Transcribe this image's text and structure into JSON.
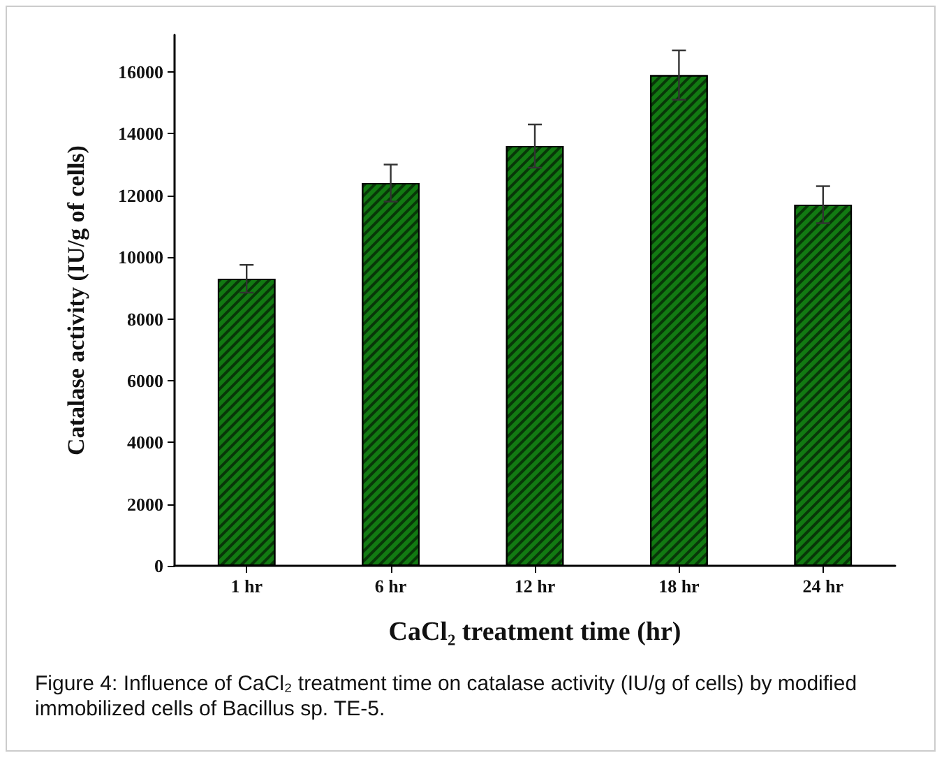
{
  "chart_data": {
    "type": "bar",
    "xlabel": "CaCl₂ treatment time (hr)",
    "ylabel": "Catalase activity (IU/g of cells)",
    "categories": [
      "1 hr",
      "6 hr",
      "12 hr",
      "18 hr",
      "24 hr"
    ],
    "values": [
      9300,
      12400,
      13600,
      15900,
      11700
    ],
    "errors": [
      450,
      600,
      700,
      800,
      600
    ],
    "color": "#127a12",
    "ylim": [
      0,
      17200
    ],
    "yticks": [
      0,
      2000,
      4000,
      6000,
      8000,
      10000,
      12000,
      14000,
      16000
    ],
    "grid": false,
    "annotations": [
      "Figure 4: Influence of CaCl₂ treatment time on catalase activity (IU/g of cells) by modified immobilized cells of Bacillus sp. TE-5."
    ]
  }
}
